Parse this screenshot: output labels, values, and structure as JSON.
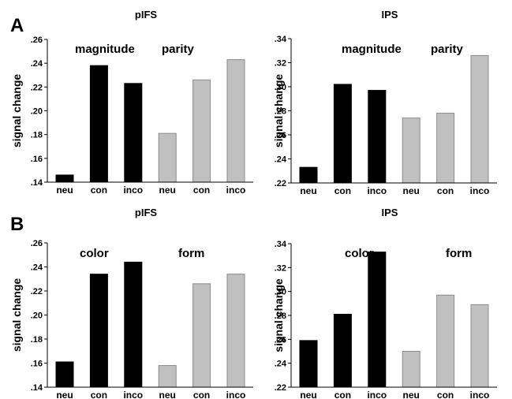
{
  "panels": [
    {
      "letter": "A"
    },
    {
      "letter": "B"
    }
  ],
  "colors": {
    "dark_bar": "#000000",
    "light_bar": "#c0c0c0",
    "light_bar_edge": "#8a8a8a",
    "axis": "#000000"
  },
  "chart_data": [
    {
      "type": "bar",
      "panel": "A",
      "title": "pIFS",
      "ylabel": "signal change",
      "xlabel": "",
      "categories": [
        "neu",
        "con",
        "inco",
        "neu",
        "con",
        "inco"
      ],
      "values": [
        0.146,
        0.238,
        0.223,
        0.181,
        0.226,
        0.243
      ],
      "bar_colors": [
        "dark",
        "dark",
        "dark",
        "light",
        "light",
        "light"
      ],
      "ylim": [
        0.14,
        0.26
      ],
      "yticks": [
        ".14",
        ".16",
        ".18",
        ".20",
        ".22",
        ".24",
        ".26"
      ],
      "group_labels": [
        "magnitude",
        "parity"
      ],
      "grid": false
    },
    {
      "type": "bar",
      "panel": "A",
      "title": "IPS",
      "ylabel": "signal change",
      "xlabel": "",
      "categories": [
        "neu",
        "con",
        "inco",
        "neu",
        "con",
        "inco"
      ],
      "values": [
        0.233,
        0.302,
        0.297,
        0.274,
        0.278,
        0.326
      ],
      "bar_colors": [
        "dark",
        "dark",
        "dark",
        "light",
        "light",
        "light"
      ],
      "ylim": [
        0.22,
        0.34
      ],
      "yticks": [
        ".22",
        ".24",
        ".26",
        ".28",
        ".30",
        ".32",
        ".34"
      ],
      "group_labels": [
        "magnitude",
        "parity"
      ],
      "grid": false
    },
    {
      "type": "bar",
      "panel": "B",
      "title": "pIFS",
      "ylabel": "signal change",
      "xlabel": "",
      "categories": [
        "neu",
        "con",
        "inco",
        "neu",
        "con",
        "inco"
      ],
      "values": [
        0.161,
        0.234,
        0.244,
        0.158,
        0.226,
        0.234
      ],
      "bar_colors": [
        "dark",
        "dark",
        "dark",
        "light",
        "light",
        "light"
      ],
      "ylim": [
        0.14,
        0.26
      ],
      "yticks": [
        ".14",
        ".16",
        ".18",
        ".20",
        ".22",
        ".24",
        ".26"
      ],
      "group_labels": [
        "color",
        "form"
      ],
      "grid": false
    },
    {
      "type": "bar",
      "panel": "B",
      "title": "IPS",
      "ylabel": "signal change",
      "xlabel": "",
      "categories": [
        "neu",
        "con",
        "inco",
        "neu",
        "con",
        "inco"
      ],
      "values": [
        0.259,
        0.281,
        0.333,
        0.25,
        0.297,
        0.289
      ],
      "bar_colors": [
        "dark",
        "dark",
        "dark",
        "light",
        "light",
        "light"
      ],
      "ylim": [
        0.22,
        0.34
      ],
      "yticks": [
        ".22",
        ".24",
        ".26",
        ".28",
        ".30",
        ".32",
        ".34"
      ],
      "group_labels": [
        "color",
        "form"
      ],
      "grid": false
    }
  ]
}
